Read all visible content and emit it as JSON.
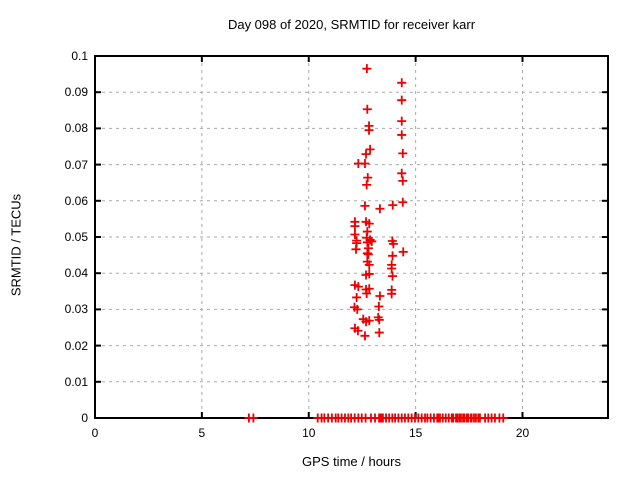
{
  "chart_data": {
    "type": "scatter",
    "title": "Day 098 of 2020, SRMTID for receiver karr",
    "xlabel": "GPS time / hours",
    "ylabel": "SRMTID / TECUs",
    "xlim": [
      0,
      24
    ],
    "ylim": [
      0,
      0.1
    ],
    "xticks": {
      "values": [
        0,
        5,
        10,
        15,
        20
      ],
      "labels": [
        "0",
        "5",
        "10",
        "15",
        "20"
      ]
    },
    "yticks": {
      "values": [
        0,
        0.01,
        0.02,
        0.03,
        0.04,
        0.05,
        0.06,
        0.07,
        0.08,
        0.09,
        0.1
      ],
      "labels": [
        "0",
        "0.01",
        "0.02",
        "0.03",
        "0.04",
        "0.05",
        "0.06",
        "0.07",
        "0.08",
        "0.09",
        "0.1"
      ]
    },
    "grid": true,
    "legend": "none",
    "marker": "plus",
    "colors": {
      "marker": "#ee0000",
      "grid": "#aaaaaa",
      "axis": "#000000",
      "background": "#ffffff"
    },
    "series": [
      {
        "name": "srmtid",
        "points": [
          [
            12.72,
            0.0965
          ],
          [
            14.35,
            0.0926
          ],
          [
            14.35,
            0.0878
          ],
          [
            12.74,
            0.0853
          ],
          [
            14.35,
            0.082
          ],
          [
            12.82,
            0.0807
          ],
          [
            12.82,
            0.0795
          ],
          [
            14.35,
            0.0782
          ],
          [
            12.87,
            0.0742
          ],
          [
            14.4,
            0.0731
          ],
          [
            12.68,
            0.0729
          ],
          [
            12.32,
            0.0703
          ],
          [
            12.63,
            0.0703
          ],
          [
            14.35,
            0.0676
          ],
          [
            12.76,
            0.0664
          ],
          [
            14.4,
            0.0655
          ],
          [
            12.71,
            0.0644
          ],
          [
            14.4,
            0.0596
          ],
          [
            13.93,
            0.0588
          ],
          [
            12.63,
            0.0586
          ],
          [
            13.33,
            0.0578
          ],
          [
            12.16,
            0.0542
          ],
          [
            12.68,
            0.0542
          ],
          [
            12.83,
            0.0537
          ],
          [
            12.16,
            0.053
          ],
          [
            12.74,
            0.0515
          ],
          [
            12.16,
            0.0507
          ],
          [
            12.71,
            0.0498
          ],
          [
            12.87,
            0.0492
          ],
          [
            12.24,
            0.049
          ],
          [
            13.91,
            0.0489
          ],
          [
            12.95,
            0.0488
          ],
          [
            12.74,
            0.0485
          ],
          [
            12.24,
            0.0483
          ],
          [
            13.96,
            0.0481
          ],
          [
            12.79,
            0.0469
          ],
          [
            12.21,
            0.0466
          ],
          [
            14.42,
            0.0459
          ],
          [
            12.74,
            0.0455
          ],
          [
            12.79,
            0.0452
          ],
          [
            13.92,
            0.0448
          ],
          [
            12.74,
            0.0432
          ],
          [
            12.83,
            0.0423
          ],
          [
            13.88,
            0.0423
          ],
          [
            13.88,
            0.0413
          ],
          [
            12.83,
            0.0398
          ],
          [
            12.68,
            0.0395
          ],
          [
            13.92,
            0.0392
          ],
          [
            12.16,
            0.0367
          ],
          [
            12.32,
            0.0363
          ],
          [
            12.83,
            0.0357
          ],
          [
            12.68,
            0.0355
          ],
          [
            13.88,
            0.0354
          ],
          [
            12.71,
            0.0344
          ],
          [
            13.88,
            0.0343
          ],
          [
            13.33,
            0.0337
          ],
          [
            12.24,
            0.0333
          ],
          [
            13.28,
            0.0308
          ],
          [
            12.14,
            0.0306
          ],
          [
            12.27,
            0.03
          ],
          [
            13.25,
            0.0278
          ],
          [
            12.55,
            0.0273
          ],
          [
            13.3,
            0.0271
          ],
          [
            12.83,
            0.0269
          ],
          [
            12.68,
            0.0266
          ],
          [
            12.16,
            0.0248
          ],
          [
            12.3,
            0.0241
          ],
          [
            13.3,
            0.0236
          ],
          [
            12.63,
            0.0227
          ]
        ]
      }
    ],
    "zero_runs": [
      [
        10.42,
        10.6
      ],
      [
        10.73,
        11.26
      ],
      [
        11.38,
        11.85
      ],
      [
        11.98,
        12.32
      ],
      [
        12.48,
        12.66
      ],
      [
        12.91,
        13.29
      ],
      [
        13.35,
        13.41
      ],
      [
        13.47,
        13.91
      ],
      [
        14.04,
        14.35
      ],
      [
        14.5,
        15.44
      ],
      [
        15.55,
        16.01
      ],
      [
        16.06,
        16.14
      ],
      [
        16.27,
        16.69
      ],
      [
        16.76,
        16.89
      ],
      [
        16.95,
        17.04
      ],
      [
        17.12,
        17.22
      ],
      [
        17.28,
        17.39
      ],
      [
        17.46,
        17.58
      ],
      [
        17.62,
        17.73
      ],
      [
        17.82,
        17.93
      ],
      [
        18.01,
        18.25
      ],
      [
        18.4,
        18.71
      ],
      [
        18.92,
        19.1
      ]
    ],
    "zero_points": [
      7.2,
      7.41
    ]
  }
}
